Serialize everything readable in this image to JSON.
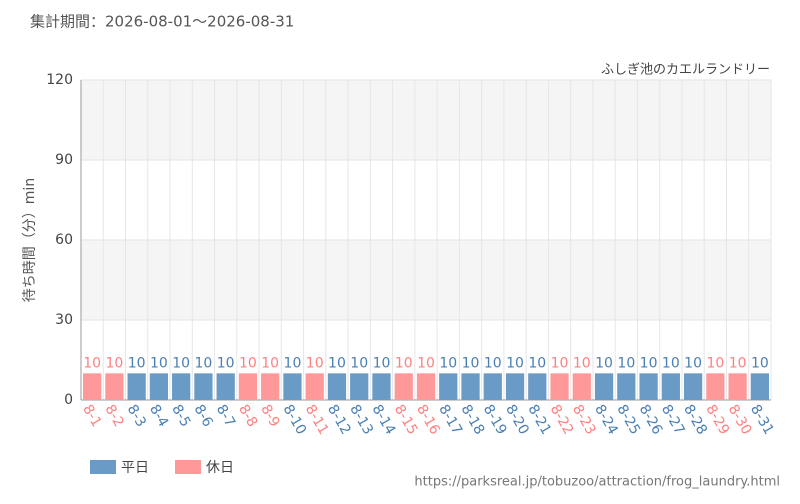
{
  "chart_data": {
    "type": "bar",
    "title": "集計期間：2026-08-01～2026-08-31",
    "subtitle": "ふしぎ池のカエルランドリー",
    "y_label": "待ち時間（分）min",
    "source": "https://parksreal.jp/tobuzoo/attraction/frog_laundry.html",
    "categories": [
      "8-1",
      "8-2",
      "8-3",
      "8-4",
      "8-5",
      "8-6",
      "8-7",
      "8-8",
      "8-9",
      "8-10",
      "8-11",
      "8-12",
      "8-13",
      "8-14",
      "8-15",
      "8-16",
      "8-17",
      "8-18",
      "8-19",
      "8-20",
      "8-21",
      "8-22",
      "8-23",
      "8-24",
      "8-25",
      "8-26",
      "8-27",
      "8-28",
      "8-29",
      "8-30",
      "8-31"
    ],
    "series": [
      {
        "name": "平日",
        "color": "#6a9bc6",
        "label_color": "#4a7fb3",
        "values": [
          null,
          null,
          10,
          10,
          10,
          10,
          10,
          null,
          null,
          10,
          null,
          10,
          10,
          10,
          null,
          null,
          10,
          10,
          10,
          10,
          10,
          null,
          null,
          10,
          10,
          10,
          10,
          10,
          null,
          null,
          10
        ]
      },
      {
        "name": "休日",
        "color": "#ff9999",
        "label_color": "#ff8080",
        "values": [
          10,
          10,
          null,
          null,
          null,
          null,
          null,
          10,
          10,
          null,
          10,
          null,
          null,
          null,
          10,
          10,
          null,
          null,
          null,
          null,
          null,
          10,
          10,
          null,
          null,
          null,
          null,
          null,
          10,
          10,
          null
        ]
      }
    ],
    "ylim": [
      0,
      120
    ],
    "yticks": [
      0,
      30,
      60,
      90,
      120
    ],
    "grid": true,
    "legend": "bottom-left"
  }
}
